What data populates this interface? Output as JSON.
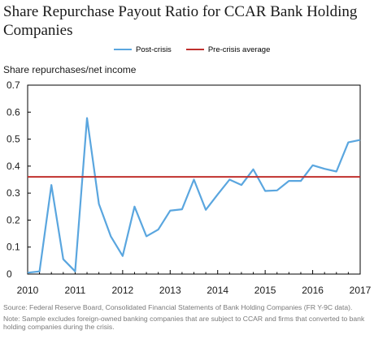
{
  "chart_data": {
    "type": "line",
    "title": "Share Repurchase Payout Ratio for CCAR Bank Holding Companies",
    "ylabel": "Share repurchases/net income",
    "xlabel": "",
    "ylim": [
      0,
      0.7
    ],
    "xlim": [
      2010,
      2017
    ],
    "yticks": [
      "0",
      "0.1",
      "0.2",
      "0.3",
      "0.4",
      "0.5",
      "0.6",
      "0.7"
    ],
    "xticks": [
      "2010",
      "2011",
      "2012",
      "2013",
      "2014",
      "2015",
      "2016",
      "2017"
    ],
    "grid": false,
    "legend_position": "top",
    "series": [
      {
        "name": "Post-crisis",
        "color": "#5aa6df",
        "x": [
          2010.0,
          2010.25,
          2010.5,
          2010.75,
          2011.0,
          2011.25,
          2011.5,
          2011.75,
          2012.0,
          2012.25,
          2012.5,
          2012.75,
          2013.0,
          2013.25,
          2013.5,
          2013.75,
          2014.0,
          2014.25,
          2014.5,
          2014.75,
          2015.0,
          2015.25,
          2015.5,
          2015.75,
          2016.0,
          2016.25,
          2016.5,
          2016.75,
          2017.0
        ],
        "values": [
          0.005,
          0.01,
          0.33,
          0.055,
          0.01,
          0.578,
          0.26,
          0.14,
          0.067,
          0.25,
          0.14,
          0.165,
          0.235,
          0.24,
          0.35,
          0.238,
          0.295,
          0.35,
          0.33,
          0.388,
          0.308,
          0.31,
          0.345,
          0.345,
          0.403,
          0.39,
          0.38,
          0.488,
          0.497
        ]
      },
      {
        "name": "Pre-crisis average",
        "color": "#c0302d",
        "x": [
          2010.0,
          2017.0
        ],
        "values": [
          0.36,
          0.36
        ]
      }
    ]
  },
  "notes": {
    "source": "Source: Federal Reserve Board, Consolidated Financial Statements of Bank Holding Companies (FR Y-9C data).",
    "note": "Note: Sample excludes foreign-owned banking companies that are subject to CCAR and firms that converted to bank holding companies during the crisis."
  }
}
